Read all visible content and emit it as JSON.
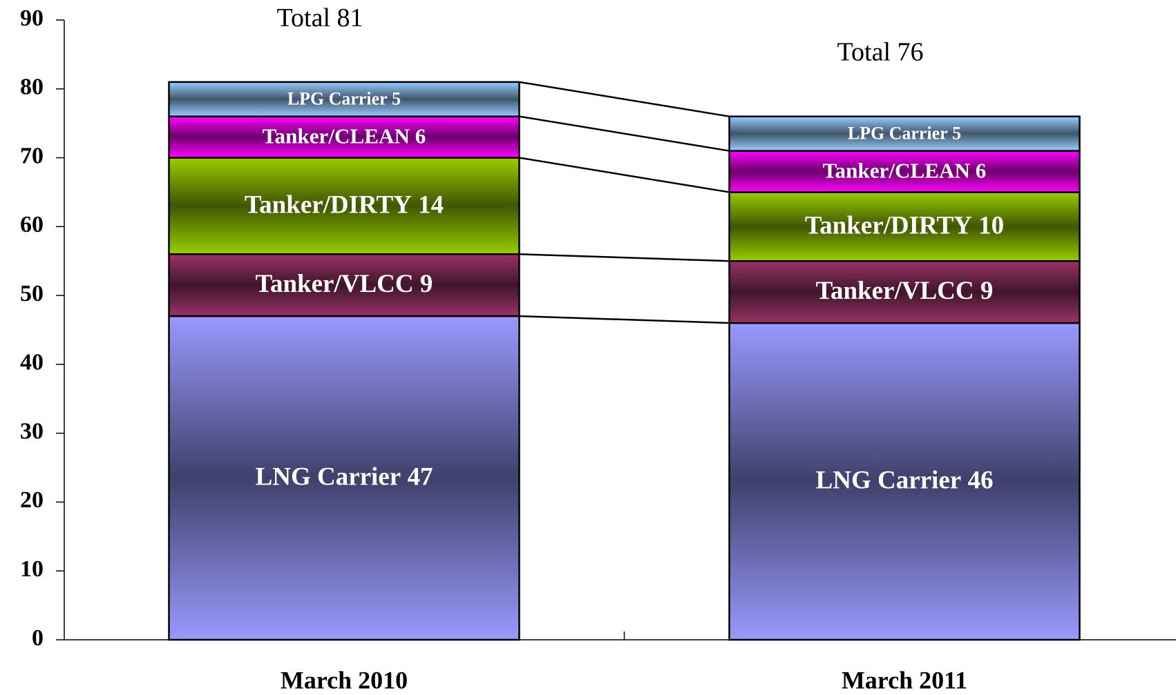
{
  "chart_data": {
    "type": "stacked_bar",
    "categories": [
      "March 2010",
      "March 2011"
    ],
    "series": [
      {
        "name": "LNG Carrier",
        "color": "#9999ff",
        "values": [
          47,
          46
        ]
      },
      {
        "name": "Tanker/VLCC",
        "color": "#993366",
        "values": [
          9,
          9
        ]
      },
      {
        "name": "Tanker/DIRTY",
        "color": "#99cc00",
        "values": [
          14,
          10
        ]
      },
      {
        "name": "Tanker/CLEAN",
        "color": "#ff00ff",
        "values": [
          6,
          6
        ]
      },
      {
        "name": "LPG Carrier",
        "color": "#99ccff",
        "values": [
          5,
          5
        ]
      }
    ],
    "total_label": "Total",
    "totals": [
      81,
      76
    ],
    "ylim": [
      0,
      90
    ],
    "yticks": [
      0,
      10,
      20,
      30,
      40,
      50,
      60,
      70,
      80,
      90
    ],
    "grid": false
  }
}
